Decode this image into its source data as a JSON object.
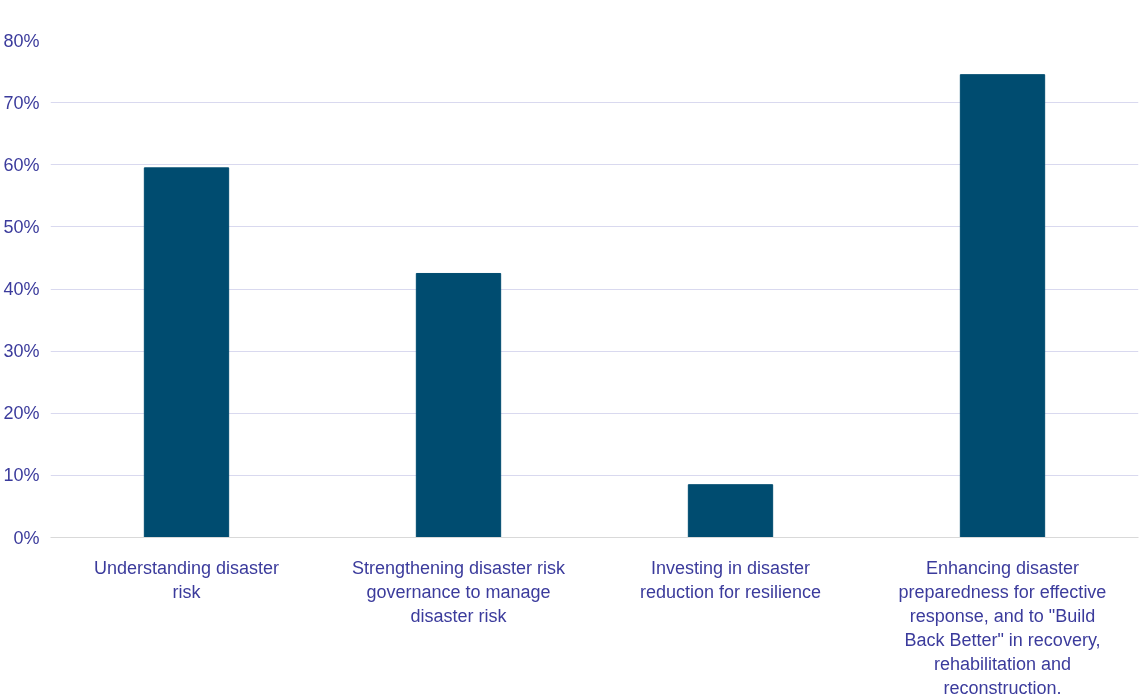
{
  "chart_data": {
    "type": "bar",
    "categories": [
      "Understanding disaster\nrisk",
      "Strengthening disaster risk\ngovernance to manage\ndisaster risk",
      "Investing in disaster\nreduction for resilience",
      "Enhancing disaster\npreparedness for effective\nresponse, and to \"Build\nBack Better\" in recovery,\nrehabilitation and\nreconstruction."
    ],
    "values": [
      59.5,
      42.5,
      8.5,
      74.5
    ],
    "color": "#004c70",
    "ylim": [
      0,
      80
    ],
    "yticks": [
      {
        "value": 0,
        "label": "0%"
      },
      {
        "value": 10,
        "label": "10%"
      },
      {
        "value": 20,
        "label": "20%"
      },
      {
        "value": 30,
        "label": "30%"
      },
      {
        "value": 40,
        "label": "40%"
      },
      {
        "value": 50,
        "label": "50%"
      },
      {
        "value": 60,
        "label": "60%"
      },
      {
        "value": 70,
        "label": "70%"
      },
      {
        "value": 80,
        "label": "80%"
      }
    ],
    "grid": "y"
  }
}
